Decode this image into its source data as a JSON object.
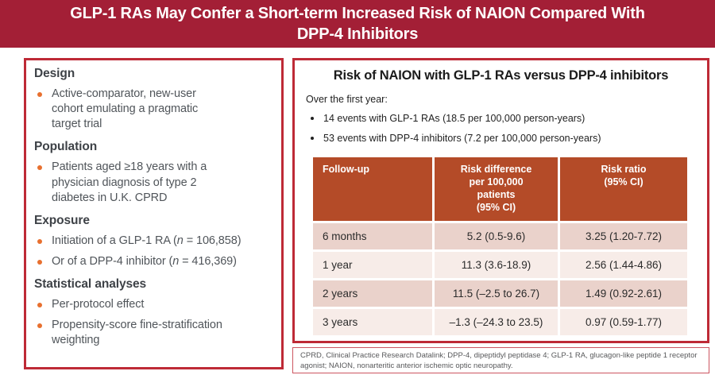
{
  "banner": {
    "title": "GLP-1 RAs May Confer a Short-term Increased Risk of NAION Compared With\nDPP-4 Inhibitors"
  },
  "left_panel": {
    "sections": [
      {
        "heading": "Design",
        "bullets": [
          "Active-comparator, new-user\ncohort emulating a pragmatic\ntarget trial"
        ]
      },
      {
        "heading": "Population",
        "bullets": [
          "Patients aged ≥18 years with a\nphysician diagnosis of type 2\ndiabetes in U.K. CPRD"
        ]
      },
      {
        "heading": "Exposure",
        "bullets_rich": [
          {
            "pre": "Initiation of a GLP-1 RA (",
            "italic": "n",
            "post": " = 106,858)"
          },
          {
            "pre": "Or of a DPP-4 inhibitor (",
            "italic": "n",
            "post": " = 416,369)"
          }
        ]
      },
      {
        "heading": "Statistical analyses",
        "bullets": [
          "Per-protocol effect",
          "Propensity-score fine-stratification\nweighting"
        ]
      }
    ]
  },
  "right_panel": {
    "title": "Risk of NAION with GLP-1 RAs versus DPP-4 inhibitors",
    "intro": "Over the first year:",
    "bullets": [
      "14 events with GLP-1 RAs (18.5 per 100,000 person-years)",
      "53 events with DPP-4 inhibitors (7.2 per 100,000 person-years)"
    ],
    "table": {
      "headers": [
        "Follow-up",
        "Risk difference\nper 100,000\npatients\n(95% CI)",
        "Risk ratio\n(95% CI)"
      ],
      "rows": [
        [
          "6 months",
          "5.2 (0.5-9.6)",
          "3.25 (1.20-7.72)"
        ],
        [
          "1 year",
          "11.3 (3.6-18.9)",
          "2.56 (1.44-4.86)"
        ],
        [
          "2 years",
          "11.5 (–2.5 to 26.7)",
          "1.49 (0.92-2.61)"
        ],
        [
          "3 years",
          "–1.3 (–24.3 to 23.5)",
          "0.97 (0.59-1.77)"
        ]
      ]
    }
  },
  "footnote": "CPRD, Clinical Practice Research Datalink; DPP-4, dipeptidyl peptidase 4; GLP-1 RA, glucagon-like peptide 1 receptor agonist; NAION, nonarteritic anterior ischemic optic neuropathy.",
  "colors": {
    "banner_red": "#A31F36",
    "panel_border_red": "#BE2A36",
    "table_header_orange": "#B44B28",
    "row_pink_dark": "#EAD2CB",
    "row_pink_light": "#F7ECE8",
    "bullet_orange": "#E8702F",
    "footnote_border_pink": "#CC5560"
  }
}
